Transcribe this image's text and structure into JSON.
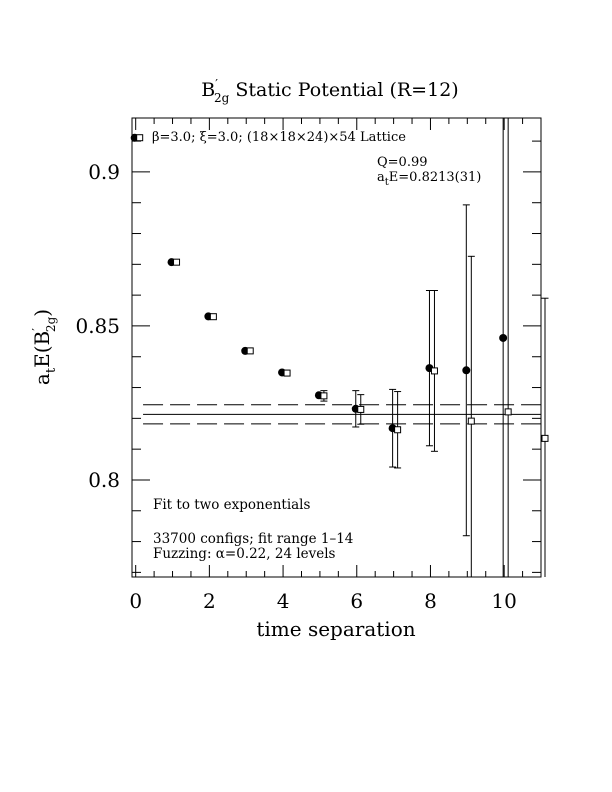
{
  "chart_data": {
    "type": "scatter",
    "title_main": "B",
    "title_sup": "′",
    "title_sub": "2g",
    "title_rest": " Static Potential (R=12)",
    "xlabel": "time separation",
    "ylabel_main": "a",
    "ylabel_sub1": "t",
    "ylabel_mid": "E(B",
    "ylabel_sup": "′",
    "ylabel_sub2": "2g",
    "ylabel_end": ")",
    "lattice_text": "β=3.0; ξ=3.0; (18×18×24)×54 Lattice",
    "q_text": "Q=0.99",
    "fit_result_a": "a",
    "fit_result_sub": "t",
    "fit_result_rest": "E=0.8213(31)",
    "fit_type_text": "Fit to two exponentials",
    "configs_text": "33700 configs; fit range 1–14",
    "fuzz_text": "Fuzzing: α=0.22, 24 levels",
    "x_ticks": [
      "0",
      "2",
      "4",
      "6",
      "8",
      "10"
    ],
    "y_ticks": [
      "0.8",
      "0.85",
      "0.9"
    ],
    "xlim": [
      -0.1,
      11.0
    ],
    "ylim": [
      0.7685,
      0.9175
    ],
    "fit_value": 0.8213,
    "fit_error": 0.0031,
    "fit_range": [
      0.2,
      11.0
    ],
    "series": [
      {
        "marker": "filled-circle",
        "points": [
          {
            "x": 0,
            "y": 0.9111,
            "err": 0.0
          },
          {
            "x": 1,
            "y": 0.8707,
            "err": 0.0
          },
          {
            "x": 2,
            "y": 0.8531,
            "err": 0.0
          },
          {
            "x": 3,
            "y": 0.8419,
            "err": 0.0
          },
          {
            "x": 4,
            "y": 0.8349,
            "err": 0.0
          },
          {
            "x": 5,
            "y": 0.8275,
            "err": 0.0
          },
          {
            "x": 6,
            "y": 0.8231,
            "err": 0.0059
          },
          {
            "x": 7,
            "y": 0.8168,
            "err": 0.0126
          },
          {
            "x": 8,
            "y": 0.8363,
            "err": 0.0252
          },
          {
            "x": 9,
            "y": 0.8356,
            "err": 0.0537
          },
          {
            "x": 10,
            "y": 0.8461,
            "err": 0.1
          }
        ]
      },
      {
        "marker": "open-square",
        "points": [
          {
            "x": 0,
            "y": 0.9111,
            "err": 0.0
          },
          {
            "x": 1,
            "y": 0.8707,
            "err": 0.0
          },
          {
            "x": 2,
            "y": 0.853,
            "err": 0.0
          },
          {
            "x": 3,
            "y": 0.8419,
            "err": 0.0
          },
          {
            "x": 4,
            "y": 0.8347,
            "err": 0.0
          },
          {
            "x": 5,
            "y": 0.8273,
            "err": 0.0017
          },
          {
            "x": 6,
            "y": 0.8229,
            "err": 0.0048
          },
          {
            "x": 7,
            "y": 0.8163,
            "err": 0.0124
          },
          {
            "x": 8,
            "y": 0.8354,
            "err": 0.0261
          },
          {
            "x": 9,
            "y": 0.8191,
            "err": 0.0535
          },
          {
            "x": 10,
            "y": 0.8221,
            "err": 0.1124
          },
          {
            "x": 11,
            "y": 0.8135,
            "err": 0.0455
          }
        ]
      }
    ]
  }
}
